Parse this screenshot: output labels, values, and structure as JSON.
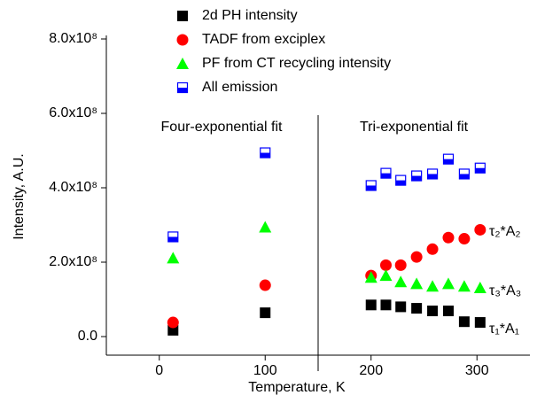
{
  "chart_data": {
    "type": "scatter",
    "xlabel": "Temperature, K",
    "ylabel": "Intensity, A.U.",
    "xlim": [
      -50,
      350
    ],
    "xticks": [
      0,
      100,
      200,
      300
    ],
    "ylim": [
      -50000000,
      800000000
    ],
    "yticks": [
      {
        "value": 0,
        "label": "0.0"
      },
      {
        "value": 200000000,
        "label": "2.0x10⁸"
      },
      {
        "value": 400000000,
        "label": "4.0x10⁸"
      },
      {
        "value": 600000000,
        "label": "6.0x10⁸"
      },
      {
        "value": 800000000,
        "label": "8.0x10⁸"
      }
    ],
    "divider": 150,
    "annotations": [
      "Four-exponential fit",
      "Tri-exponential fit",
      "τ₂*A₂",
      "τ₃*A₃",
      "τ₁*A₁"
    ],
    "series": [
      {
        "name": "2d PH intensity",
        "color": "#000000",
        "marker": "square",
        "x": [
          13,
          100,
          200,
          214,
          228,
          243,
          258,
          273,
          288,
          303
        ],
        "values": [
          17000000,
          64000000,
          85000000,
          85000000,
          80000000,
          76000000,
          69000000,
          69000000,
          40000000,
          38000000
        ]
      },
      {
        "name": "TADF from exciplex",
        "color": "#ff0000",
        "marker": "circle",
        "x": [
          13,
          100,
          200,
          214,
          228,
          243,
          258,
          273,
          288,
          303
        ],
        "values": [
          38000000,
          138000000,
          164000000,
          192000000,
          192000000,
          214000000,
          235000000,
          266000000,
          263000000,
          287000000
        ]
      },
      {
        "name": "PF from CT recycling intensity",
        "color": "#00ff00",
        "marker": "triangle",
        "x": [
          13,
          100,
          200,
          214,
          228,
          243,
          258,
          273,
          288,
          303
        ],
        "values": [
          211000000,
          294000000,
          159000000,
          164000000,
          147000000,
          142000000,
          135000000,
          142000000,
          135000000,
          131000000
        ]
      },
      {
        "name": "All emission",
        "color": "#0000ff",
        "marker": "half-square",
        "x": [
          13,
          100,
          200,
          214,
          228,
          243,
          258,
          273,
          288,
          303
        ],
        "values": [
          268000000,
          494000000,
          406000000,
          439000000,
          420000000,
          432000000,
          437000000,
          477000000,
          437000000,
          453000000
        ]
      }
    ]
  }
}
